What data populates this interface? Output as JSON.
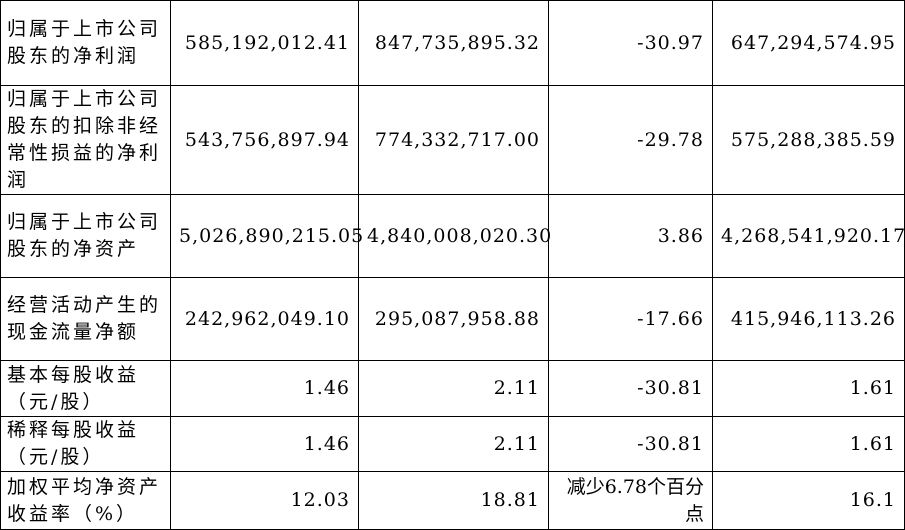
{
  "table": {
    "rows": [
      [
        "归属于上市公司股东的净利润",
        "585,192,012.41",
        "847,735,895.32",
        "-30.97",
        "647,294,574.95"
      ],
      [
        "归属于上市公司股东的扣除非经常性损益的净利润",
        "543,756,897.94",
        "774,332,717.00",
        "-29.78",
        "575,288,385.59"
      ],
      [
        "归属于上市公司股东的净资产",
        "5,026,890,215.05",
        "4,840,008,020.30",
        "3.86",
        "4,268,541,920.17"
      ],
      [
        "经营活动产生的现金流量净额",
        "242,962,049.10",
        "295,087,958.88",
        "-17.66",
        "415,946,113.26"
      ],
      [
        "基本每股收益（元/股）",
        "1.46",
        "2.11",
        "-30.81",
        "1.61"
      ],
      [
        "稀释每股收益（元/股）",
        "1.46",
        "2.11",
        "-30.81",
        "1.61"
      ],
      [
        "加权平均净资产收益率（%）",
        "12.03",
        "18.81",
        "减少6.78个百分点",
        "16.1"
      ]
    ]
  }
}
